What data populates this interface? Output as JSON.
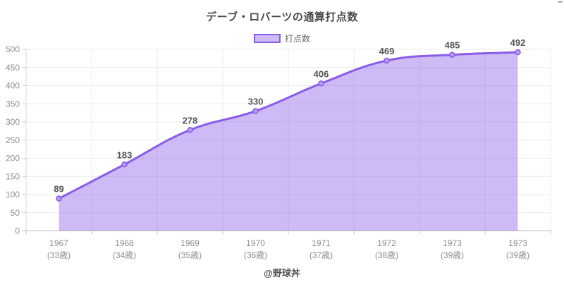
{
  "title": "デーブ・ロバーツの通算打点数",
  "legend": {
    "label": "打点数"
  },
  "footer": "@野球丼",
  "colors": {
    "line": "#8a5ce8",
    "area_fill": "rgba(138,92,232,0.42)",
    "point_fill": "#b49bf0",
    "grid": "#ebebeb",
    "axis_x": "#b5b5b5",
    "axis_y": "#d7d7d7",
    "tick": "#c4c4c4",
    "tick_label": "#8e8e8e",
    "data_label": "#555555"
  },
  "chart_data": {
    "type": "area",
    "title": "デーブ・ロバーツの通算打点数",
    "categories": [
      {
        "year": "1967",
        "age": "(33歳)"
      },
      {
        "year": "1968",
        "age": "(34歳)"
      },
      {
        "year": "1969",
        "age": "(35歳)"
      },
      {
        "year": "1970",
        "age": "(36歳)"
      },
      {
        "year": "1971",
        "age": "(37歳)"
      },
      {
        "year": "1972",
        "age": "(38歳)"
      },
      {
        "year": "1973",
        "age": "(39歳)"
      },
      {
        "year": "1973",
        "age": "(39歳)"
      }
    ],
    "series": [
      {
        "name": "打点数",
        "values": [
          89,
          183,
          278,
          330,
          406,
          469,
          485,
          492
        ]
      }
    ],
    "xlabel": "",
    "ylabel": "",
    "ylim": [
      0,
      500
    ],
    "ytick_step": 50,
    "grid": "on",
    "legend_position": "top",
    "smoothing": true,
    "data_labels": "on"
  }
}
